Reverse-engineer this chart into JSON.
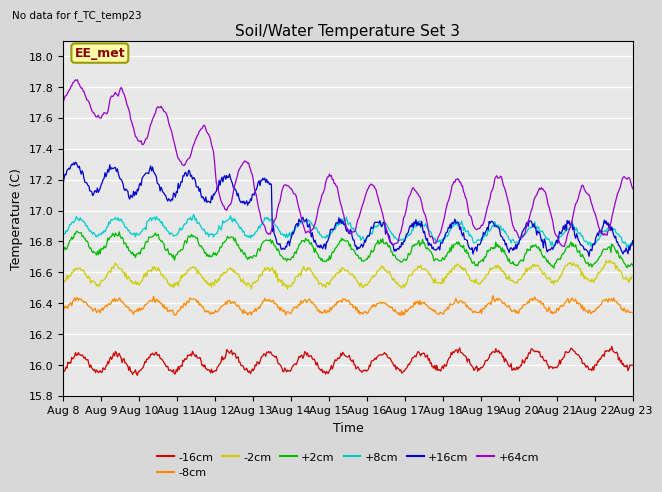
{
  "title": "Soil/Water Temperature Set 3",
  "subtitle": "No data for f_TC_temp23",
  "xlabel": "Time",
  "ylabel": "Temperature (C)",
  "ylim": [
    15.8,
    18.1
  ],
  "x_tick_labels": [
    "Aug 8",
    "Aug 9",
    "Aug 10",
    "Aug 11",
    "Aug 12",
    "Aug 13",
    "Aug 14",
    "Aug 15",
    "Aug 16",
    "Aug 17",
    "Aug 18",
    "Aug 19",
    "Aug 20",
    "Aug 21",
    "Aug 22",
    "Aug 23"
  ],
  "annotation": "EE_met",
  "background_color": "#d8d8d8",
  "plot_bg_color": "#e8e8e8",
  "series": [
    {
      "label": "-16cm",
      "color": "#cc0000",
      "base": 16.0,
      "amp": 0.06
    },
    {
      "label": "-8cm",
      "color": "#ff8800",
      "base": 16.38,
      "amp": 0.05
    },
    {
      "label": "-2cm",
      "color": "#cccc00",
      "base": 16.58,
      "amp": 0.06
    },
    {
      "label": "+2cm",
      "color": "#00bb00",
      "base": 16.78,
      "amp": 0.07
    },
    {
      "label": "+8cm",
      "color": "#00cccc",
      "base": 16.93,
      "amp": 0.06
    },
    {
      "label": "+16cm",
      "color": "#0000cc",
      "base": 17.22,
      "amp": 0.1
    },
    {
      "label": "+64cm",
      "color": "#9900cc",
      "base": 17.05,
      "amp": 0.18
    }
  ],
  "days": 15,
  "n_points": 600
}
